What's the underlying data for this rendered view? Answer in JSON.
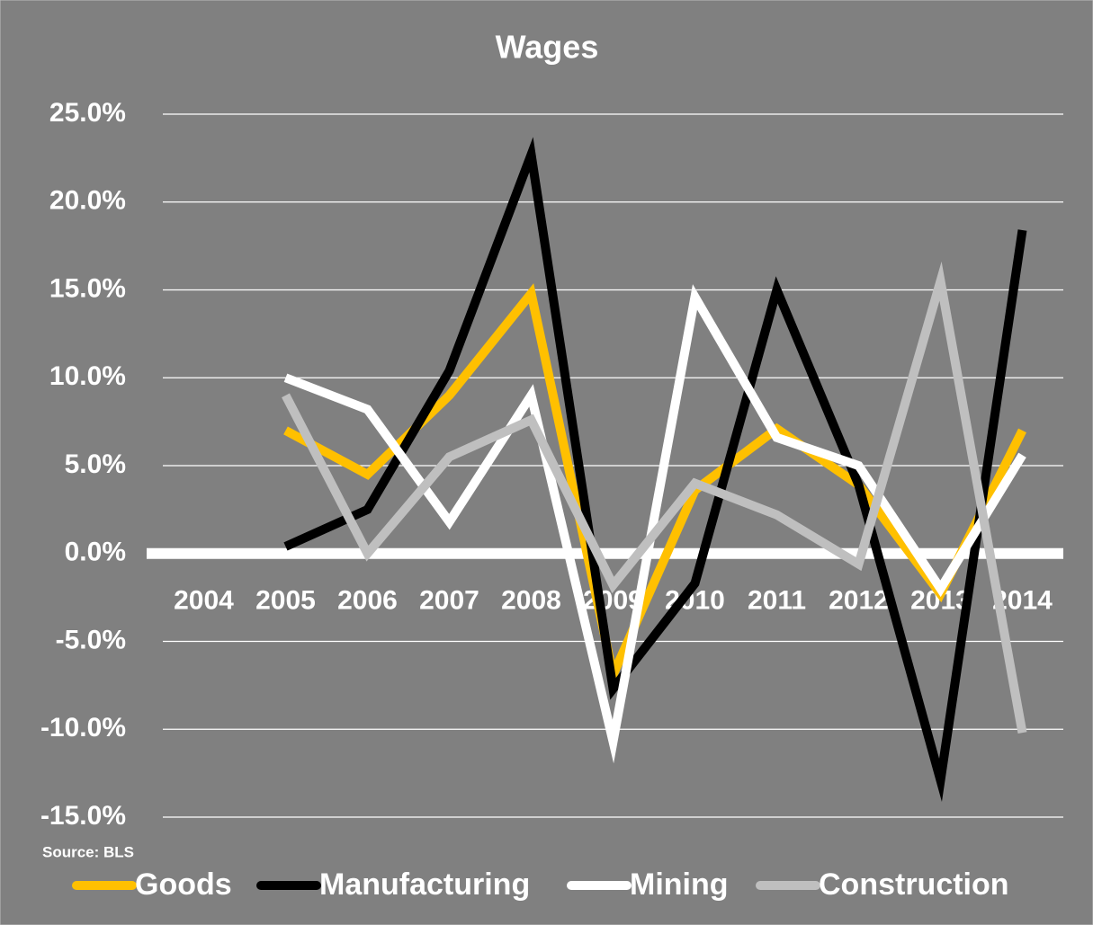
{
  "chart_data": {
    "type": "line",
    "title": "Wages",
    "annotation": "Source: BLS",
    "categories": [
      "2004",
      "2005",
      "2006",
      "2007",
      "2008",
      "2009",
      "2010",
      "2011",
      "2012",
      "2013",
      "2014"
    ],
    "series": [
      {
        "name": "Goods",
        "color": "#ffc000",
        "values": [
          null,
          7.0,
          4.5,
          9.0,
          14.8,
          -6.9,
          3.6,
          7.1,
          3.9,
          -2.3,
          7.0
        ]
      },
      {
        "name": "Manufacturing",
        "color": "#000000",
        "values": [
          null,
          0.4,
          2.5,
          10.4,
          22.7,
          -7.7,
          -1.7,
          15.0,
          3.9,
          -12.9,
          18.4
        ]
      },
      {
        "name": "Mining",
        "color": "#ffffff",
        "values": [
          null,
          10.0,
          8.2,
          1.8,
          9.0,
          -10.7,
          14.6,
          6.6,
          5.0,
          -2.0,
          5.6
        ]
      },
      {
        "name": "Construction",
        "color": "#bfbfbf",
        "values": [
          null,
          9.0,
          0.0,
          5.5,
          7.6,
          -1.8,
          4.0,
          2.2,
          -0.6,
          15.5,
          -10.2
        ]
      }
    ],
    "ylim": [
      -15,
      25
    ],
    "yticks": [
      {
        "value": -15,
        "label": "-15.0%"
      },
      {
        "value": -10,
        "label": "-10.0%"
      },
      {
        "value": -5,
        "label": "-5.0%"
      },
      {
        "value": 0,
        "label": "0.0%"
      },
      {
        "value": 5,
        "label": "5.0%"
      },
      {
        "value": 10,
        "label": "10.0%"
      },
      {
        "value": 15,
        "label": "15.0%"
      },
      {
        "value": 20,
        "label": "20.0%"
      },
      {
        "value": 25,
        "label": "25.0%"
      }
    ],
    "grid": true,
    "legend": "bottom"
  }
}
